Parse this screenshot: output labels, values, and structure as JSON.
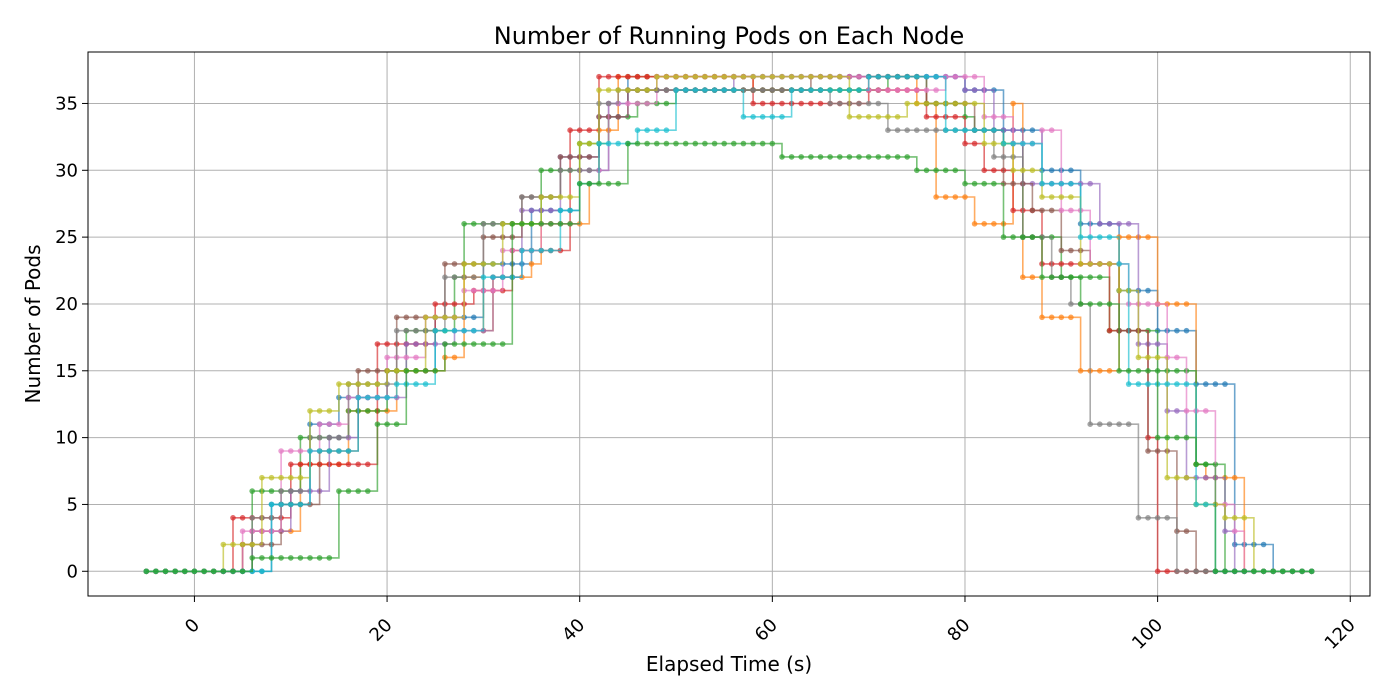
{
  "chart_data": {
    "type": "line",
    "title": "Number of Running Pods on Each Node",
    "xlabel": "Elapsed Time (s)",
    "ylabel": "Number of Pods",
    "xlim": [
      -11.05,
      122.05
    ],
    "ylim": [
      -1.85,
      38.85
    ],
    "xticks": [
      0,
      20,
      40,
      60,
      80,
      100,
      120
    ],
    "yticks": [
      0,
      5,
      10,
      15,
      20,
      25,
      30,
      35
    ],
    "grid": true,
    "markers": true,
    "series": [
      {
        "color": "#1f77b4",
        "x": [
          -5,
          1,
          2,
          7,
          8,
          12,
          15,
          20,
          25,
          30,
          35,
          40,
          43,
          45,
          48,
          80,
          84,
          88,
          92,
          96,
          100,
          104,
          106,
          108,
          111,
          112,
          116
        ],
        "y": [
          0,
          0,
          0,
          0,
          5,
          11,
          13,
          15,
          19,
          23,
          27,
          30,
          35,
          37,
          37,
          36,
          33,
          30,
          26,
          21,
          18,
          14,
          14,
          2,
          2,
          0,
          0
        ]
      },
      {
        "color": "#ff7f0e",
        "x": [
          -5,
          2,
          5,
          6,
          10,
          11,
          16,
          20,
          21,
          26,
          28,
          30,
          31,
          35,
          36,
          41,
          42,
          44,
          46,
          50,
          51,
          53,
          56,
          58,
          60,
          61,
          70,
          72,
          75,
          77,
          80,
          81,
          83,
          85,
          86,
          88,
          91,
          92,
          95,
          96,
          98,
          100,
          101,
          103,
          104,
          105,
          108,
          109,
          116
        ],
        "y": [
          0,
          0,
          2,
          3,
          3,
          8,
          12,
          12,
          15,
          16,
          22,
          18,
          22,
          23,
          26,
          29,
          33,
          37,
          37,
          37,
          37,
          37,
          37,
          36,
          36,
          36,
          37,
          37,
          35,
          28,
          28,
          26,
          26,
          35,
          22,
          19,
          19,
          15,
          15,
          25,
          25,
          20,
          20,
          20,
          8,
          7,
          7,
          0,
          0
        ]
      },
      {
        "color": "#2ca02c",
        "x": [
          -5,
          5,
          6,
          9,
          11,
          16,
          20,
          22,
          27,
          28,
          36,
          40,
          43,
          46,
          50,
          60,
          61,
          72,
          76,
          80,
          81,
          84,
          86,
          90,
          95,
          100,
          104,
          107,
          116
        ],
        "y": [
          0,
          0,
          6,
          6,
          10,
          12,
          15,
          18,
          22,
          26,
          30,
          32,
          34,
          35,
          36,
          36,
          36,
          37,
          35,
          34,
          33,
          32,
          25,
          22,
          18,
          15,
          8,
          0,
          0
        ]
      },
      {
        "color": "#d62728",
        "x": [
          -5,
          3,
          4,
          8,
          10,
          14,
          19,
          22,
          25,
          29,
          33,
          39,
          42,
          46,
          52,
          58,
          64,
          70,
          76,
          80,
          82,
          85,
          88,
          92,
          95,
          99,
          100,
          116
        ],
        "y": [
          0,
          0,
          4,
          4,
          8,
          8,
          17,
          17,
          20,
          21,
          24,
          33,
          37,
          37,
          37,
          35,
          35,
          36,
          34,
          32,
          30,
          27,
          23,
          23,
          18,
          10,
          0,
          0
        ]
      },
      {
        "color": "#9467bd",
        "x": [
          -5,
          4,
          6,
          10,
          14,
          17,
          22,
          27,
          31,
          34,
          38,
          42,
          45,
          50,
          56,
          62,
          70,
          75,
          80,
          83,
          86,
          90,
          94,
          98,
          100,
          101,
          103,
          107,
          108,
          116
        ],
        "y": [
          0,
          0,
          3,
          6,
          10,
          13,
          17,
          18,
          22,
          27,
          31,
          34,
          36,
          36,
          37,
          37,
          37,
          37,
          36,
          33,
          29,
          29,
          26,
          17,
          17,
          12,
          7,
          3,
          0,
          0
        ]
      },
      {
        "color": "#8c564b",
        "x": [
          -5,
          4,
          5,
          9,
          13,
          17,
          21,
          26,
          30,
          34,
          38,
          42,
          45,
          52,
          58,
          64,
          70,
          76,
          81,
          84,
          87,
          90,
          93,
          96,
          99,
          102,
          104,
          116
        ],
        "y": [
          0,
          0,
          2,
          5,
          9,
          15,
          19,
          23,
          25,
          28,
          31,
          34,
          36,
          36,
          36,
          37,
          37,
          35,
          33,
          29,
          27,
          24,
          23,
          18,
          9,
          3,
          0,
          0
        ]
      },
      {
        "color": "#e377c2",
        "x": [
          -5,
          3,
          5,
          9,
          13,
          16,
          20,
          24,
          28,
          32,
          36,
          40,
          43,
          48,
          55,
          62,
          70,
          78,
          82,
          85,
          88,
          90,
          93,
          97,
          101,
          103,
          106,
          108,
          109,
          116
        ],
        "y": [
          0,
          0,
          3,
          9,
          11,
          13,
          16,
          19,
          21,
          24,
          26,
          30,
          35,
          37,
          37,
          37,
          36,
          37,
          34,
          32,
          33,
          27,
          23,
          20,
          16,
          12,
          5,
          3,
          0,
          0
        ]
      },
      {
        "color": "#7f7f7f",
        "x": [
          -5,
          3,
          6,
          9,
          12,
          16,
          21,
          26,
          30,
          34,
          38,
          42,
          44,
          50,
          58,
          66,
          72,
          80,
          83,
          86,
          89,
          91,
          93,
          96,
          98,
          100,
          102,
          116
        ],
        "y": [
          0,
          0,
          4,
          6,
          10,
          14,
          18,
          22,
          26,
          28,
          30,
          35,
          36,
          36,
          36,
          35,
          33,
          33,
          31,
          25,
          22,
          20,
          11,
          11,
          4,
          4,
          0,
          0
        ]
      },
      {
        "color": "#bcbd22",
        "x": [
          -5,
          2,
          3,
          7,
          12,
          15,
          20,
          24,
          28,
          32,
          36,
          40,
          42,
          48,
          56,
          62,
          68,
          74,
          78,
          82,
          85,
          88,
          92,
          96,
          98,
          101,
          104,
          107,
          110,
          116
        ],
        "y": [
          0,
          0,
          2,
          7,
          12,
          14,
          15,
          19,
          23,
          26,
          28,
          32,
          36,
          37,
          37,
          37,
          34,
          35,
          35,
          32,
          30,
          28,
          23,
          21,
          16,
          7,
          5,
          4,
          0,
          0
        ]
      },
      {
        "color": "#17becf",
        "x": [
          -5,
          6,
          8,
          12,
          17,
          21,
          25,
          30,
          34,
          38,
          40,
          42,
          46,
          50,
          57,
          59,
          62,
          70,
          78,
          84,
          88,
          92,
          96,
          97,
          101,
          104,
          106,
          116
        ],
        "y": [
          0,
          0,
          5,
          9,
          13,
          14,
          18,
          22,
          24,
          27,
          29,
          32,
          33,
          36,
          34,
          34,
          36,
          37,
          33,
          32,
          29,
          25,
          23,
          14,
          14,
          5,
          0,
          0
        ]
      },
      {
        "color": "#2ca02c",
        "x": [
          -5,
          5,
          6,
          10,
          15,
          19,
          22,
          24,
          26,
          30,
          33,
          36,
          39,
          40,
          41,
          44,
          45,
          46,
          50,
          56,
          60,
          61,
          72,
          74,
          75,
          78,
          80,
          81,
          84,
          88,
          92,
          96,
          100,
          104,
          106,
          116
        ],
        "y": [
          0,
          0,
          1,
          1,
          6,
          11,
          15,
          15,
          17,
          17,
          26,
          26,
          26,
          29,
          29,
          29,
          32,
          32,
          32,
          32,
          32,
          31,
          31,
          31,
          30,
          30,
          29,
          29,
          25,
          22,
          20,
          15,
          10,
          8,
          0,
          0
        ]
      }
    ]
  }
}
